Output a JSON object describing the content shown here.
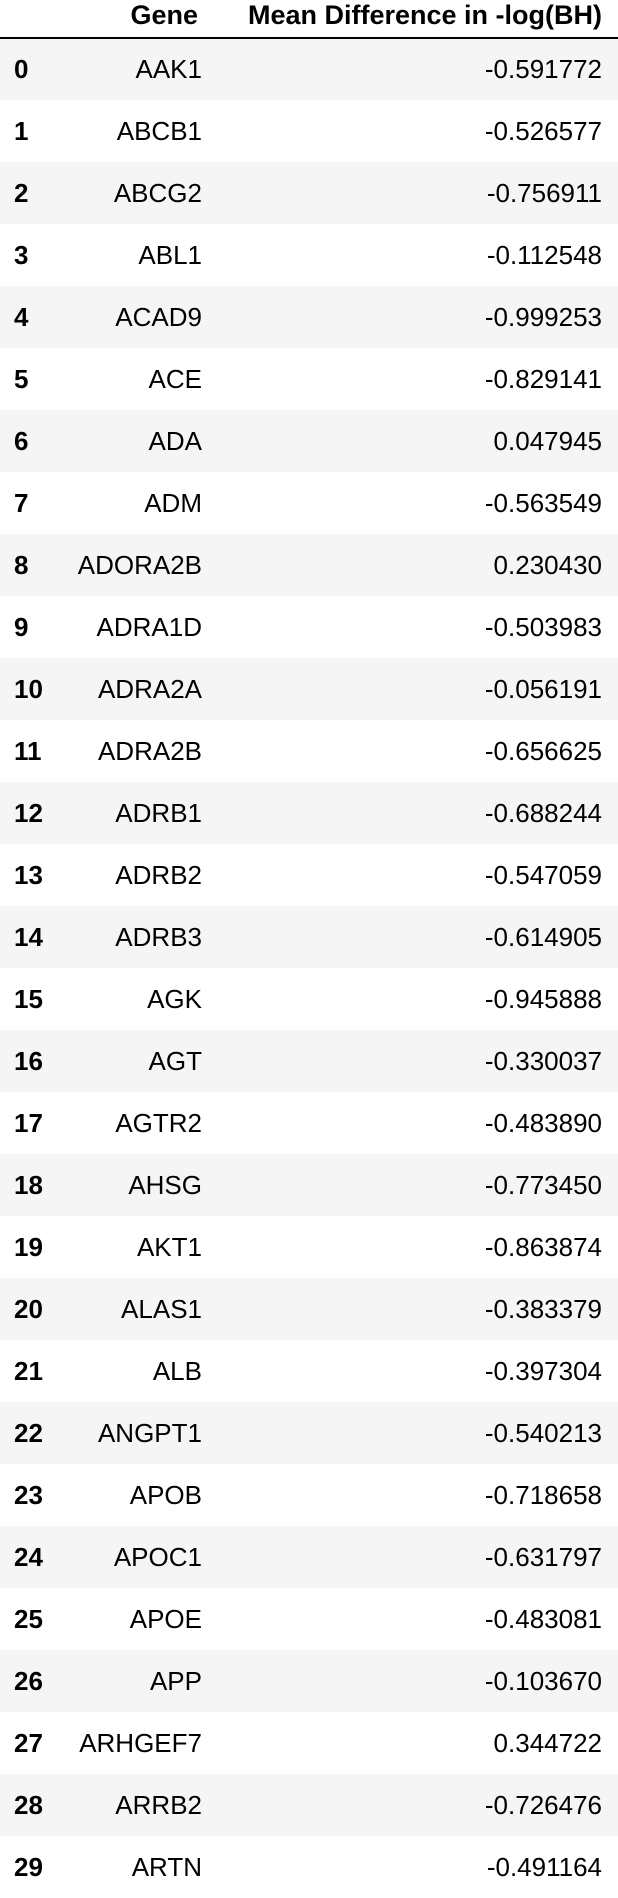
{
  "table": {
    "headers": {
      "index": "",
      "gene": "Gene",
      "value": "Mean Difference in -log(BH)"
    },
    "rows": [
      {
        "index": "0",
        "gene": "AAK1",
        "value": "-0.591772"
      },
      {
        "index": "1",
        "gene": "ABCB1",
        "value": "-0.526577"
      },
      {
        "index": "2",
        "gene": "ABCG2",
        "value": "-0.756911"
      },
      {
        "index": "3",
        "gene": "ABL1",
        "value": "-0.112548"
      },
      {
        "index": "4",
        "gene": "ACAD9",
        "value": "-0.999253"
      },
      {
        "index": "5",
        "gene": "ACE",
        "value": "-0.829141"
      },
      {
        "index": "6",
        "gene": "ADA",
        "value": "0.047945"
      },
      {
        "index": "7",
        "gene": "ADM",
        "value": "-0.563549"
      },
      {
        "index": "8",
        "gene": "ADORA2B",
        "value": "0.230430"
      },
      {
        "index": "9",
        "gene": "ADRA1D",
        "value": "-0.503983"
      },
      {
        "index": "10",
        "gene": "ADRA2A",
        "value": "-0.056191"
      },
      {
        "index": "11",
        "gene": "ADRA2B",
        "value": "-0.656625"
      },
      {
        "index": "12",
        "gene": "ADRB1",
        "value": "-0.688244"
      },
      {
        "index": "13",
        "gene": "ADRB2",
        "value": "-0.547059"
      },
      {
        "index": "14",
        "gene": "ADRB3",
        "value": "-0.614905"
      },
      {
        "index": "15",
        "gene": "AGK",
        "value": "-0.945888"
      },
      {
        "index": "16",
        "gene": "AGT",
        "value": "-0.330037"
      },
      {
        "index": "17",
        "gene": "AGTR2",
        "value": "-0.483890"
      },
      {
        "index": "18",
        "gene": "AHSG",
        "value": "-0.773450"
      },
      {
        "index": "19",
        "gene": "AKT1",
        "value": "-0.863874"
      },
      {
        "index": "20",
        "gene": "ALAS1",
        "value": "-0.383379"
      },
      {
        "index": "21",
        "gene": "ALB",
        "value": "-0.397304"
      },
      {
        "index": "22",
        "gene": "ANGPT1",
        "value": "-0.540213"
      },
      {
        "index": "23",
        "gene": "APOB",
        "value": "-0.718658"
      },
      {
        "index": "24",
        "gene": "APOC1",
        "value": "-0.631797"
      },
      {
        "index": "25",
        "gene": "APOE",
        "value": "-0.483081"
      },
      {
        "index": "26",
        "gene": "APP",
        "value": "-0.103670"
      },
      {
        "index": "27",
        "gene": "ARHGEF7",
        "value": "0.344722"
      },
      {
        "index": "28",
        "gene": "ARRB2",
        "value": "-0.726476"
      },
      {
        "index": "29",
        "gene": "ARTN",
        "value": "-0.491164"
      }
    ]
  },
  "colors": {
    "row_stripe": "#f5f5f5",
    "row_plain": "#ffffff",
    "header_rule": "#000000",
    "text": "#000000"
  }
}
